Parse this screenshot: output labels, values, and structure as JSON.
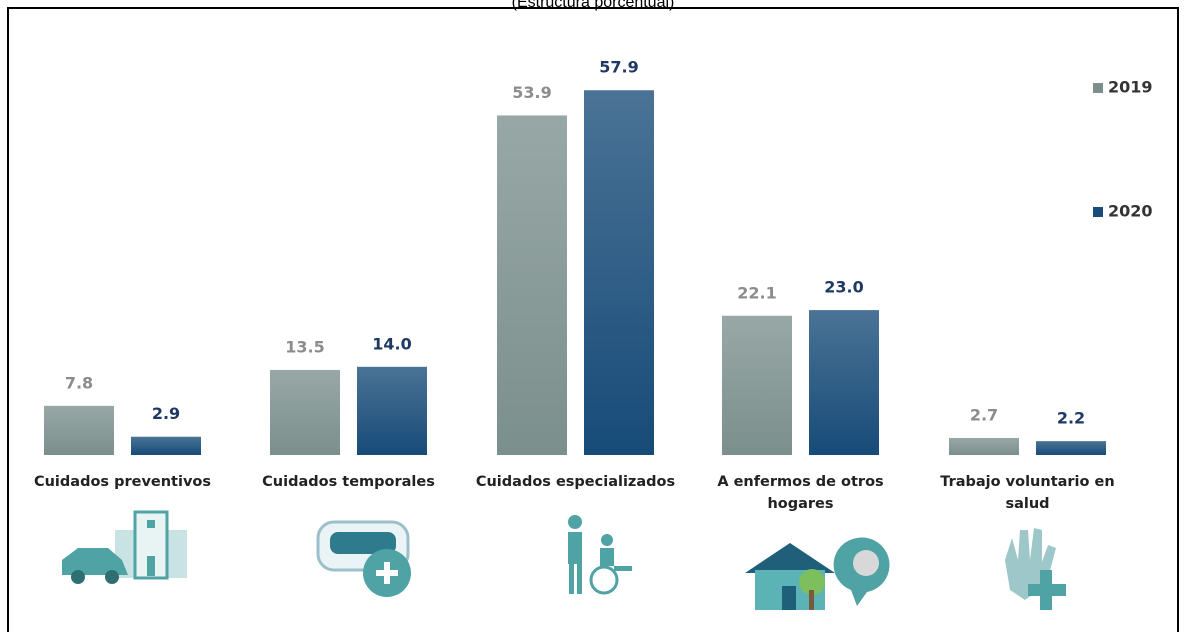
{
  "chart_data": {
    "type": "bar",
    "subtitle": "(Estructura porcentual)",
    "categories": [
      "Cuidados preventivos",
      "Cuidados temporales",
      "Cuidados especializados",
      "A enfermos de otros hogares",
      "Trabajo voluntario en salud"
    ],
    "series": [
      {
        "name": "2019",
        "color": "#7b8f8d",
        "label_color": "#8c8c8c",
        "values": [
          7.8,
          13.5,
          53.9,
          22.1,
          2.7
        ],
        "value_labels": [
          "7.8",
          "13.5",
          "53.9",
          "22.1",
          "2.7"
        ]
      },
      {
        "name": "2020",
        "color": "#174b78",
        "label_color": "#1f3864",
        "values": [
          2.9,
          14.0,
          57.9,
          23.0,
          2.2
        ],
        "value_labels": [
          "2.9",
          "14.0",
          "57.9",
          "23.0",
          "2.2"
        ]
      }
    ],
    "ylim": [
      0,
      60
    ],
    "legend": "right"
  }
}
